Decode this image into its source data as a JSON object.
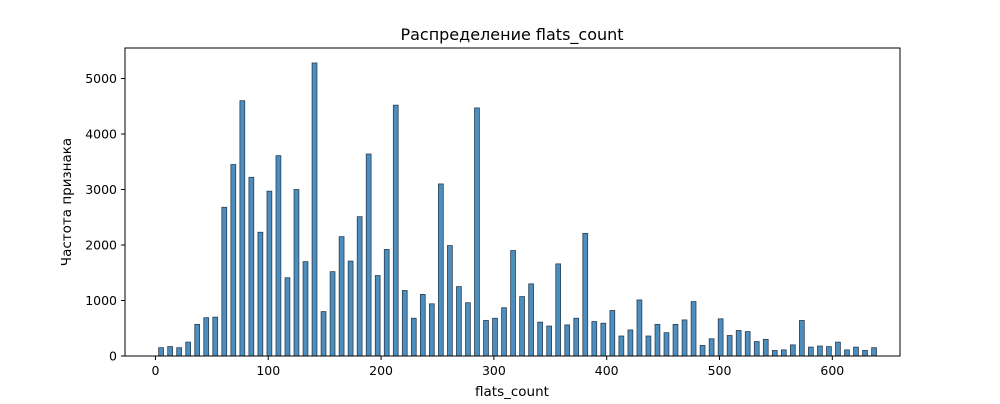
{
  "chart_data": {
    "type": "bar",
    "title": "Распределение flats_count",
    "xlabel": "flats_count",
    "ylabel": "Частота признака",
    "xlim": [
      -27,
      660
    ],
    "ylim": [
      0,
      5550
    ],
    "xticks": [
      0,
      100,
      200,
      300,
      400,
      500,
      600
    ],
    "yticks": [
      0,
      1000,
      2000,
      3000,
      4000,
      5000
    ],
    "bar_width": 4.3,
    "colors": {
      "bar_fill": "#4c8fbf",
      "bar_edge": "#2b3e52",
      "axis": "#000000"
    },
    "grid": false,
    "x": [
      5,
      13,
      21,
      29,
      37,
      45,
      53,
      61,
      69,
      77,
      85,
      93,
      101,
      109,
      117,
      125,
      133,
      141,
      149,
      157,
      165,
      173,
      181,
      189,
      197,
      205,
      213,
      221,
      229,
      237,
      245,
      253,
      261,
      269,
      277,
      285,
      293,
      301,
      309,
      317,
      325,
      333,
      341,
      349,
      357,
      365,
      373,
      381,
      389,
      397,
      405,
      413,
      421,
      429,
      437,
      445,
      453,
      461,
      469,
      477,
      485,
      493,
      501,
      509,
      517,
      525,
      533,
      541,
      549,
      557,
      565,
      573,
      581,
      589,
      597,
      605,
      613,
      621,
      629,
      637
    ],
    "values": [
      150,
      170,
      150,
      250,
      570,
      690,
      700,
      2680,
      3450,
      4600,
      3220,
      2230,
      2970,
      3610,
      1410,
      3000,
      1700,
      5280,
      800,
      1520,
      2150,
      1710,
      2510,
      3640,
      1450,
      1920,
      4520,
      1180,
      680,
      1110,
      940,
      3100,
      1990,
      1250,
      960,
      4470,
      640,
      680,
      870,
      1900,
      1070,
      1300,
      610,
      540,
      1660,
      560,
      680,
      2210,
      620,
      590,
      820,
      360,
      470,
      1010,
      360,
      570,
      420,
      570,
      650,
      980,
      190,
      310,
      670,
      370,
      460,
      440,
      260,
      300,
      100,
      110,
      200,
      640,
      160,
      180,
      170,
      250,
      110,
      160,
      100,
      150
    ]
  }
}
